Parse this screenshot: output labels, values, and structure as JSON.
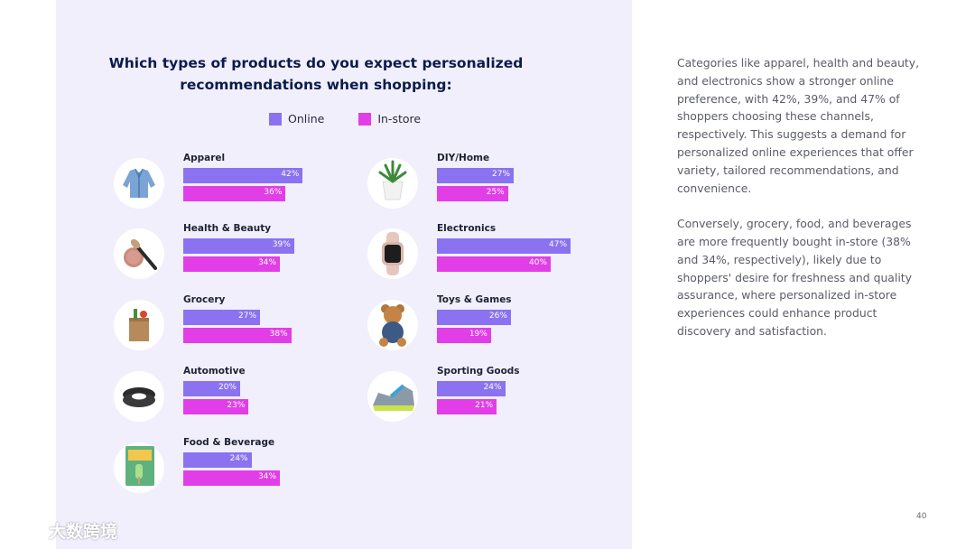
{
  "title": "Which types of products do you expect personalized recommendations when shopping:",
  "legend": {
    "online": "Online",
    "instore": "In-store"
  },
  "colors": {
    "online": "#8a72f0",
    "instore": "#e23ee7",
    "title": "#0b1b4d",
    "panel": "#f1effc"
  },
  "chart_data": {
    "type": "bar",
    "orientation": "horizontal",
    "title": "Which types of products do you expect personalized recommendations when shopping:",
    "value_unit": "%",
    "series": [
      {
        "name": "Online"
      },
      {
        "name": "In-store"
      }
    ],
    "categories": [
      {
        "label": "Apparel",
        "icon": "jacket-icon",
        "online": 42,
        "instore": 36
      },
      {
        "label": "Health & Beauty",
        "icon": "makeup-brush-icon",
        "online": 39,
        "instore": 34
      },
      {
        "label": "Grocery",
        "icon": "grocery-bag-icon",
        "online": 27,
        "instore": 38
      },
      {
        "label": "Automotive",
        "icon": "tire-icon",
        "online": 20,
        "instore": 23
      },
      {
        "label": "Food & Beverage",
        "icon": "food-box-icon",
        "online": 24,
        "instore": 34
      },
      {
        "label": "DIY/Home",
        "icon": "plant-pot-icon",
        "online": 27,
        "instore": 25
      },
      {
        "label": "Electronics",
        "icon": "smartwatch-icon",
        "online": 47,
        "instore": 40
      },
      {
        "label": "Toys & Games",
        "icon": "teddy-bear-icon",
        "online": 26,
        "instore": 19
      },
      {
        "label": "Sporting Goods",
        "icon": "sneaker-icon",
        "online": 24,
        "instore": 21
      }
    ]
  },
  "body": {
    "p1": "Categories like apparel, health and beauty, and electronics show a stronger online preference, with 42%, 39%, and 47% of shoppers choosing these channels, respectively. This suggests a demand for personalized online experiences that offer variety, tailored recommendations, and convenience.",
    "p2": "Conversely, grocery, food, and beverages are more frequently bought in-store (38% and 34%, respectively), likely due to shoppers' desire for freshness and quality assurance, where personalized in-store experiences could enhance product discovery and satisfaction."
  },
  "page_number": "40",
  "watermark": {
    "text": "大数跨境"
  }
}
